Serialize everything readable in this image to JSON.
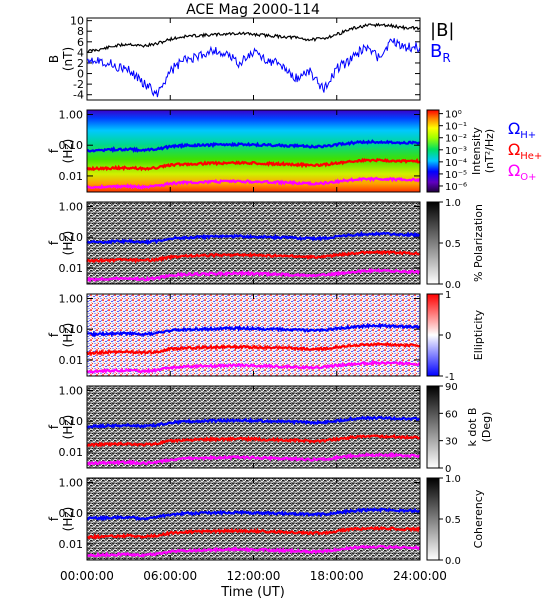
{
  "title": "ACE Mag 2000-114",
  "x_axis": {
    "label": "Time (UT)",
    "tick_labels": [
      "00:00:00",
      "06:00:00",
      "12:00:00",
      "18:00:00",
      "24:00:00"
    ],
    "ticks_hours": [
      0,
      6,
      12,
      18,
      24
    ],
    "range_hours": [
      0,
      24
    ]
  },
  "colors": {
    "B_total": "#000000",
    "B_R": "#0000ff",
    "H_plus": "#0000ff",
    "He_plus": "#ff0000",
    "O_plus": "#ff00ff"
  },
  "chart_data": [
    {
      "id": "field",
      "type": "line",
      "ylabel_line1": "B",
      "ylabel_line2": "(nT)",
      "ytick_labels": [
        "10",
        "8",
        "6",
        "4",
        "2",
        "0",
        "-2",
        "-4"
      ],
      "yticks": [
        10,
        8,
        6,
        4,
        2,
        0,
        -2,
        -4
      ],
      "ylim": [
        -5,
        10.5
      ],
      "legend": [
        {
          "label": "|B|",
          "color": "#000000"
        },
        {
          "label": "B",
          "sub": "R",
          "color": "#0000ff"
        }
      ],
      "series": [
        {
          "name": "|B|",
          "color": "#000000",
          "x": [
            0,
            1,
            2,
            3,
            4,
            5,
            6,
            7,
            8,
            9,
            10,
            11,
            12,
            13,
            14,
            15,
            16,
            17,
            18,
            19,
            20,
            21,
            22,
            23,
            24
          ],
          "y": [
            4.2,
            4.6,
            5.2,
            5.6,
            5.2,
            5.6,
            6.5,
            7.0,
            7.2,
            7.3,
            7.5,
            7.6,
            7.4,
            7.2,
            7.0,
            6.8,
            6.4,
            6.6,
            7.4,
            8.4,
            9.0,
            9.2,
            9.0,
            8.6,
            8.6
          ]
        },
        {
          "name": "B",
          "sub": "R",
          "color": "#0000ff",
          "x": [
            0,
            1,
            2,
            3,
            4,
            5,
            6,
            7,
            8,
            9,
            10,
            11,
            12,
            13,
            14,
            15,
            16,
            17,
            18,
            19,
            20,
            21,
            22,
            23,
            24
          ],
          "y": [
            3.0,
            2.5,
            1.5,
            0.5,
            -1.5,
            -4.0,
            0.5,
            2.5,
            3.0,
            4.5,
            3.5,
            2.0,
            4.0,
            2.5,
            1.5,
            -1.0,
            0.5,
            -3.0,
            1.0,
            2.5,
            5.0,
            3.0,
            6.0,
            5.0,
            5.0
          ]
        }
      ]
    },
    {
      "id": "intensity",
      "type": "heatmap",
      "ylabel_line1": "f",
      "ylabel_line2": "(Hz)",
      "ytick_labels": [
        "1.00",
        "0.10",
        "0.01"
      ],
      "yticks": [
        1.0,
        0.1,
        0.01
      ],
      "yscale": "log",
      "ylim": [
        0.003,
        1.4
      ],
      "colorbar": {
        "label": "Intensity",
        "units": "(nT²/Hz)",
        "tick_labels": [
          "10⁰",
          "10⁻¹",
          "10⁻²",
          "10⁻³",
          "10⁻⁴",
          "10⁻⁵",
          "10⁻⁶"
        ],
        "ticks": [
          0,
          -1,
          -2,
          -3,
          -4,
          -5,
          -6
        ],
        "range": [
          -6.5,
          0.3
        ],
        "colormap": "rainbow"
      }
    },
    {
      "id": "polarization",
      "type": "heatmap",
      "ylabel_line1": "f",
      "ylabel_line2": "(Hz)",
      "ytick_labels": [
        "1.00",
        "0.10",
        "0.01"
      ],
      "yticks": [
        1.0,
        0.1,
        0.01
      ],
      "yscale": "log",
      "ylim": [
        0.003,
        1.4
      ],
      "colorbar": {
        "label": "% Polarization",
        "tick_labels": [
          "1.0",
          "0.5",
          "0.0"
        ],
        "ticks": [
          1.0,
          0.5,
          0.0
        ],
        "range": [
          0,
          1
        ],
        "colormap": "gray"
      }
    },
    {
      "id": "ellipticity",
      "type": "heatmap",
      "ylabel_line1": "f",
      "ylabel_line2": "(Hz)",
      "ytick_labels": [
        "1.00",
        "0.10",
        "0.01"
      ],
      "yticks": [
        1.0,
        0.1,
        0.01
      ],
      "yscale": "log",
      "ylim": [
        0.003,
        1.4
      ],
      "colorbar": {
        "label": "Ellipticity",
        "tick_labels": [
          "1",
          "0",
          "-1"
        ],
        "ticks": [
          1,
          0,
          -1
        ],
        "range": [
          -1,
          1
        ],
        "colormap": "blue-white-red"
      }
    },
    {
      "id": "kdotb",
      "type": "heatmap",
      "ylabel_line1": "f",
      "ylabel_line2": "(Hz)",
      "ytick_labels": [
        "1.00",
        "0.10",
        "0.01"
      ],
      "yticks": [
        1.0,
        0.1,
        0.01
      ],
      "yscale": "log",
      "ylim": [
        0.003,
        1.4
      ],
      "colorbar": {
        "label_line1": "k dot B",
        "label_line2": "(Deg)",
        "tick_labels": [
          "90",
          "60",
          "30",
          "0"
        ],
        "ticks": [
          90,
          60,
          30,
          0
        ],
        "range": [
          0,
          90
        ],
        "colormap": "gray"
      }
    },
    {
      "id": "coherency",
      "type": "heatmap",
      "ylabel_line1": "f",
      "ylabel_line2": "(Hz)",
      "ytick_labels": [
        "1.00",
        "0.10",
        "0.01"
      ],
      "yticks": [
        1.0,
        0.1,
        0.01
      ],
      "yscale": "log",
      "ylim": [
        0.003,
        1.4
      ],
      "colorbar": {
        "label": "Coherency",
        "tick_labels": [
          "1.0",
          "0.5",
          "0.0"
        ],
        "ticks": [
          1.0,
          0.5,
          0.0
        ],
        "range": [
          0,
          1
        ],
        "colormap": "gray"
      }
    }
  ],
  "gyrofrequencies": {
    "legend": [
      {
        "label": "Ω",
        "sub": "H+",
        "color": "#0000ff"
      },
      {
        "label": "Ω",
        "sub": "He+",
        "color": "#ff0000"
      },
      {
        "label": "Ω",
        "sub": "O+",
        "color": "#ff00ff"
      }
    ],
    "x_hours": [
      0,
      1,
      2,
      3,
      4,
      5,
      6,
      7,
      8,
      9,
      10,
      11,
      12,
      13,
      14,
      15,
      16,
      17,
      18,
      19,
      20,
      21,
      22,
      23,
      24
    ],
    "H_plus_hz": [
      0.067,
      0.07,
      0.072,
      0.074,
      0.068,
      0.074,
      0.09,
      0.098,
      0.1,
      0.103,
      0.105,
      0.107,
      0.104,
      0.101,
      0.098,
      0.095,
      0.09,
      0.092,
      0.104,
      0.118,
      0.126,
      0.129,
      0.126,
      0.12,
      0.12
    ]
  }
}
